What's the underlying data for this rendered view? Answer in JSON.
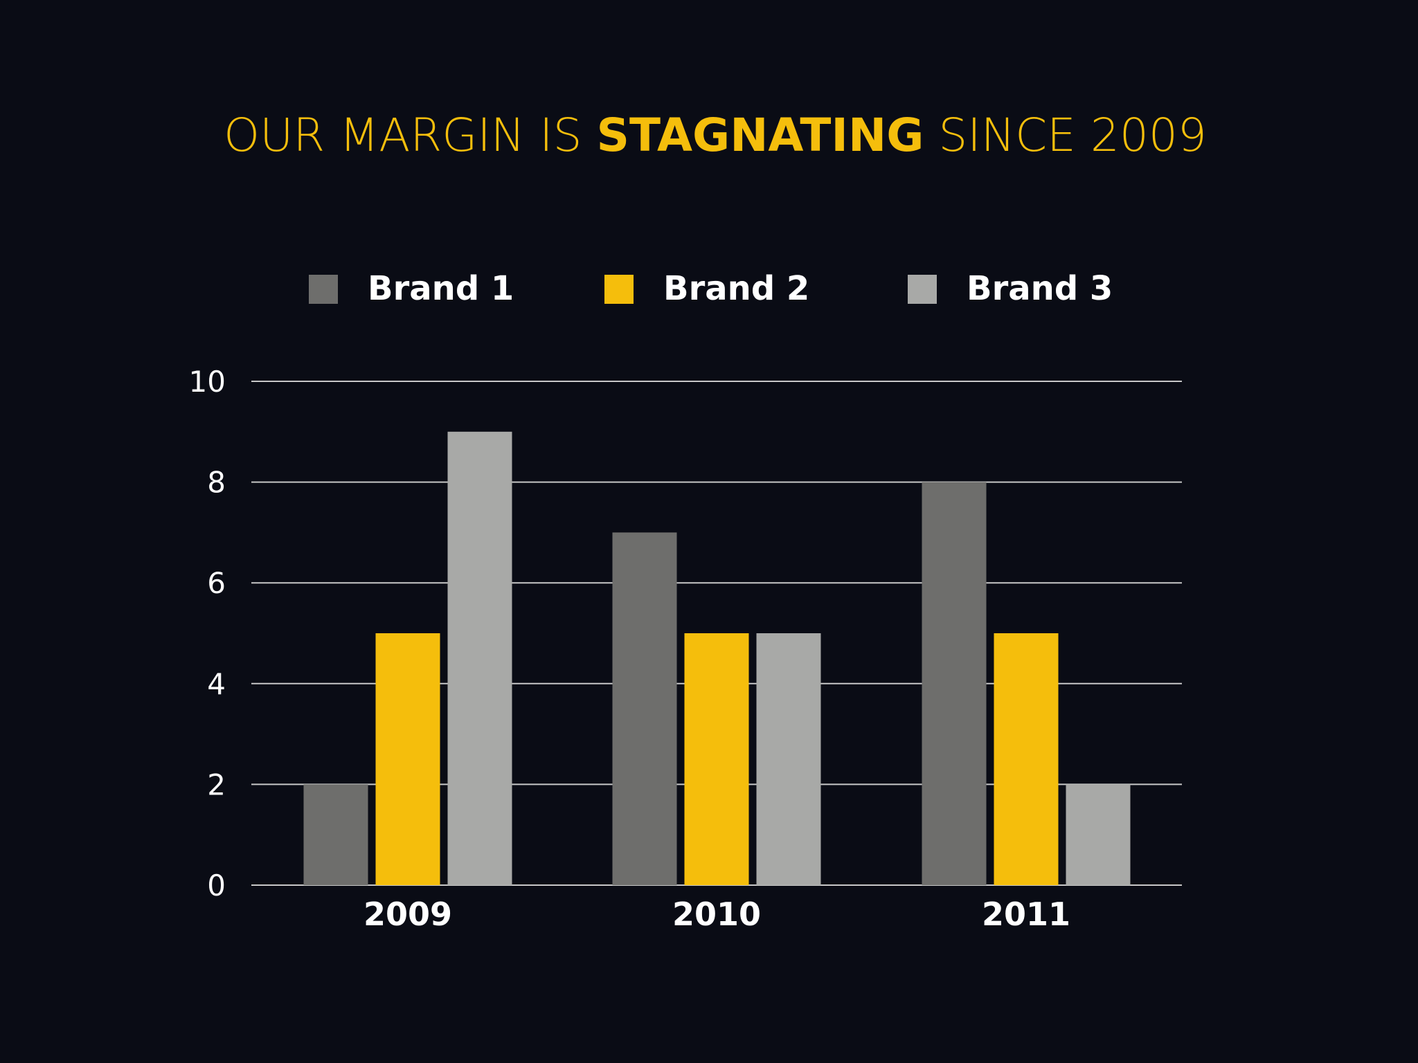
{
  "chart_data": {
    "type": "bar",
    "title": {
      "prefix": "OUR MARGIN IS ",
      "emphasis": "STAGNATING",
      "suffix": " SINCE 2009"
    },
    "categories": [
      "2009",
      "2010",
      "2011"
    ],
    "series": [
      {
        "name": "Brand 1",
        "values": [
          2,
          7,
          8
        ],
        "color": "#6e6e6c"
      },
      {
        "name": "Brand 2",
        "values": [
          5,
          5,
          5
        ],
        "color": "#f5be0c"
      },
      {
        "name": "Brand 3",
        "values": [
          9,
          5,
          2
        ],
        "color": "#a8a9a7"
      }
    ],
    "ylim": [
      0,
      10
    ],
    "yticks": [
      0,
      2,
      4,
      6,
      8,
      10
    ],
    "xlabel": "",
    "ylabel": "",
    "grid": true,
    "legend": "top",
    "colors": {
      "background": "#0a0c15",
      "title": "#f5be0c",
      "grid": "#c8c8c8",
      "text": "#ffffff"
    }
  }
}
